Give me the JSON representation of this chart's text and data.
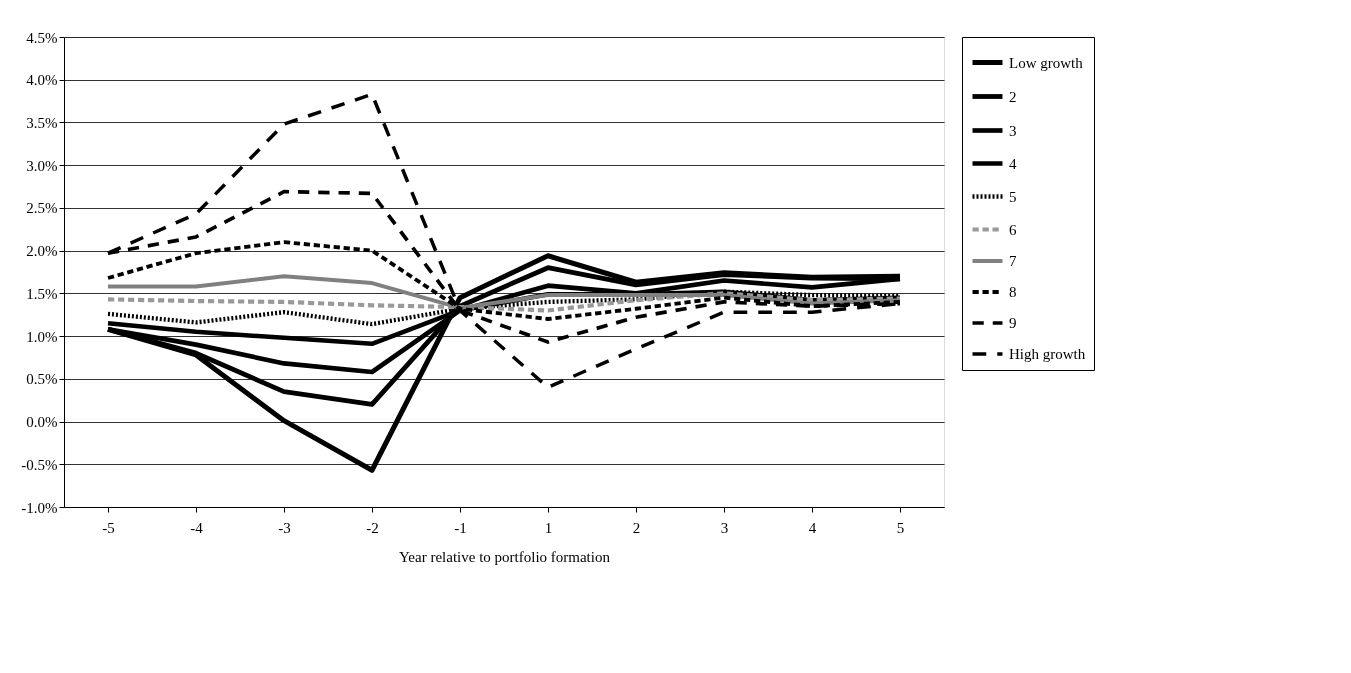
{
  "chart_data": {
    "type": "line",
    "xlabel": "Year relative to portfolio formation",
    "categories": [
      "-5",
      "-4",
      "-3",
      "-2",
      "-1",
      "1",
      "2",
      "3",
      "4",
      "5"
    ],
    "ylim": [
      -1.0,
      4.5
    ],
    "yticks": [
      {
        "value": -1.0,
        "label": "-1.0%"
      },
      {
        "value": -0.5,
        "label": "-0.5%"
      },
      {
        "value": 0.0,
        "label": "0.0%"
      },
      {
        "value": 0.5,
        "label": "0.5%"
      },
      {
        "value": 1.0,
        "label": "1.0%"
      },
      {
        "value": 1.5,
        "label": "1.5%"
      },
      {
        "value": 2.0,
        "label": "2.0%"
      },
      {
        "value": 2.5,
        "label": "2.5%"
      },
      {
        "value": 3.0,
        "label": "3.0%"
      },
      {
        "value": 3.5,
        "label": "3.5%"
      },
      {
        "value": 4.0,
        "label": "4.0%"
      },
      {
        "value": 4.5,
        "label": "4.5%"
      }
    ],
    "grid": "y",
    "legend": "right",
    "marker": "none",
    "series": [
      {
        "name": "Low growth",
        "color": "#000000",
        "line_style": "solid",
        "values": [
          1.08,
          0.78,
          0.01,
          -0.57,
          1.45,
          1.94,
          1.63,
          1.74,
          1.69,
          1.7
        ]
      },
      {
        "name": "2",
        "color": "#000000",
        "line_style": "solid",
        "values": [
          1.08,
          0.8,
          0.35,
          0.2,
          1.35,
          1.8,
          1.6,
          1.72,
          1.68,
          1.67
        ]
      },
      {
        "name": "3",
        "color": "#000000",
        "line_style": "solid",
        "values": [
          1.08,
          0.9,
          0.68,
          0.58,
          1.3,
          1.59,
          1.5,
          1.65,
          1.57,
          1.67
        ]
      },
      {
        "name": "4",
        "color": "#000000",
        "line_style": "solid",
        "values": [
          1.15,
          1.05,
          0.98,
          0.91,
          1.3,
          1.49,
          1.49,
          1.52,
          1.42,
          1.45
        ]
      },
      {
        "name": "5",
        "color": "#000000",
        "line_style": "dotted",
        "values": [
          1.26,
          1.16,
          1.28,
          1.14,
          1.32,
          1.4,
          1.43,
          1.52,
          1.48,
          1.47
        ]
      },
      {
        "name": "6",
        "color": "#999999",
        "line_style": "dashed",
        "values": [
          1.43,
          1.41,
          1.4,
          1.36,
          1.34,
          1.3,
          1.42,
          1.5,
          1.42,
          1.44
        ]
      },
      {
        "name": "7",
        "color": "#808080",
        "line_style": "solid",
        "values": [
          1.58,
          1.58,
          1.7,
          1.62,
          1.33,
          1.48,
          1.48,
          1.48,
          1.38,
          1.42
        ]
      },
      {
        "name": "8",
        "color": "#000000",
        "line_style": "dashed",
        "values": [
          1.68,
          1.97,
          2.1,
          2.0,
          1.32,
          1.2,
          1.32,
          1.45,
          1.35,
          1.4
        ]
      },
      {
        "name": "9",
        "color": "#000000",
        "line_style": "dashed",
        "values": [
          1.97,
          2.16,
          2.69,
          2.67,
          1.3,
          0.93,
          1.22,
          1.4,
          1.35,
          1.38
        ]
      },
      {
        "name": "High growth",
        "color": "#000000",
        "line_style": "dashed",
        "values": [
          1.97,
          2.43,
          3.48,
          3.83,
          1.3,
          0.4,
          0.85,
          1.28,
          1.28,
          1.38
        ]
      }
    ]
  }
}
